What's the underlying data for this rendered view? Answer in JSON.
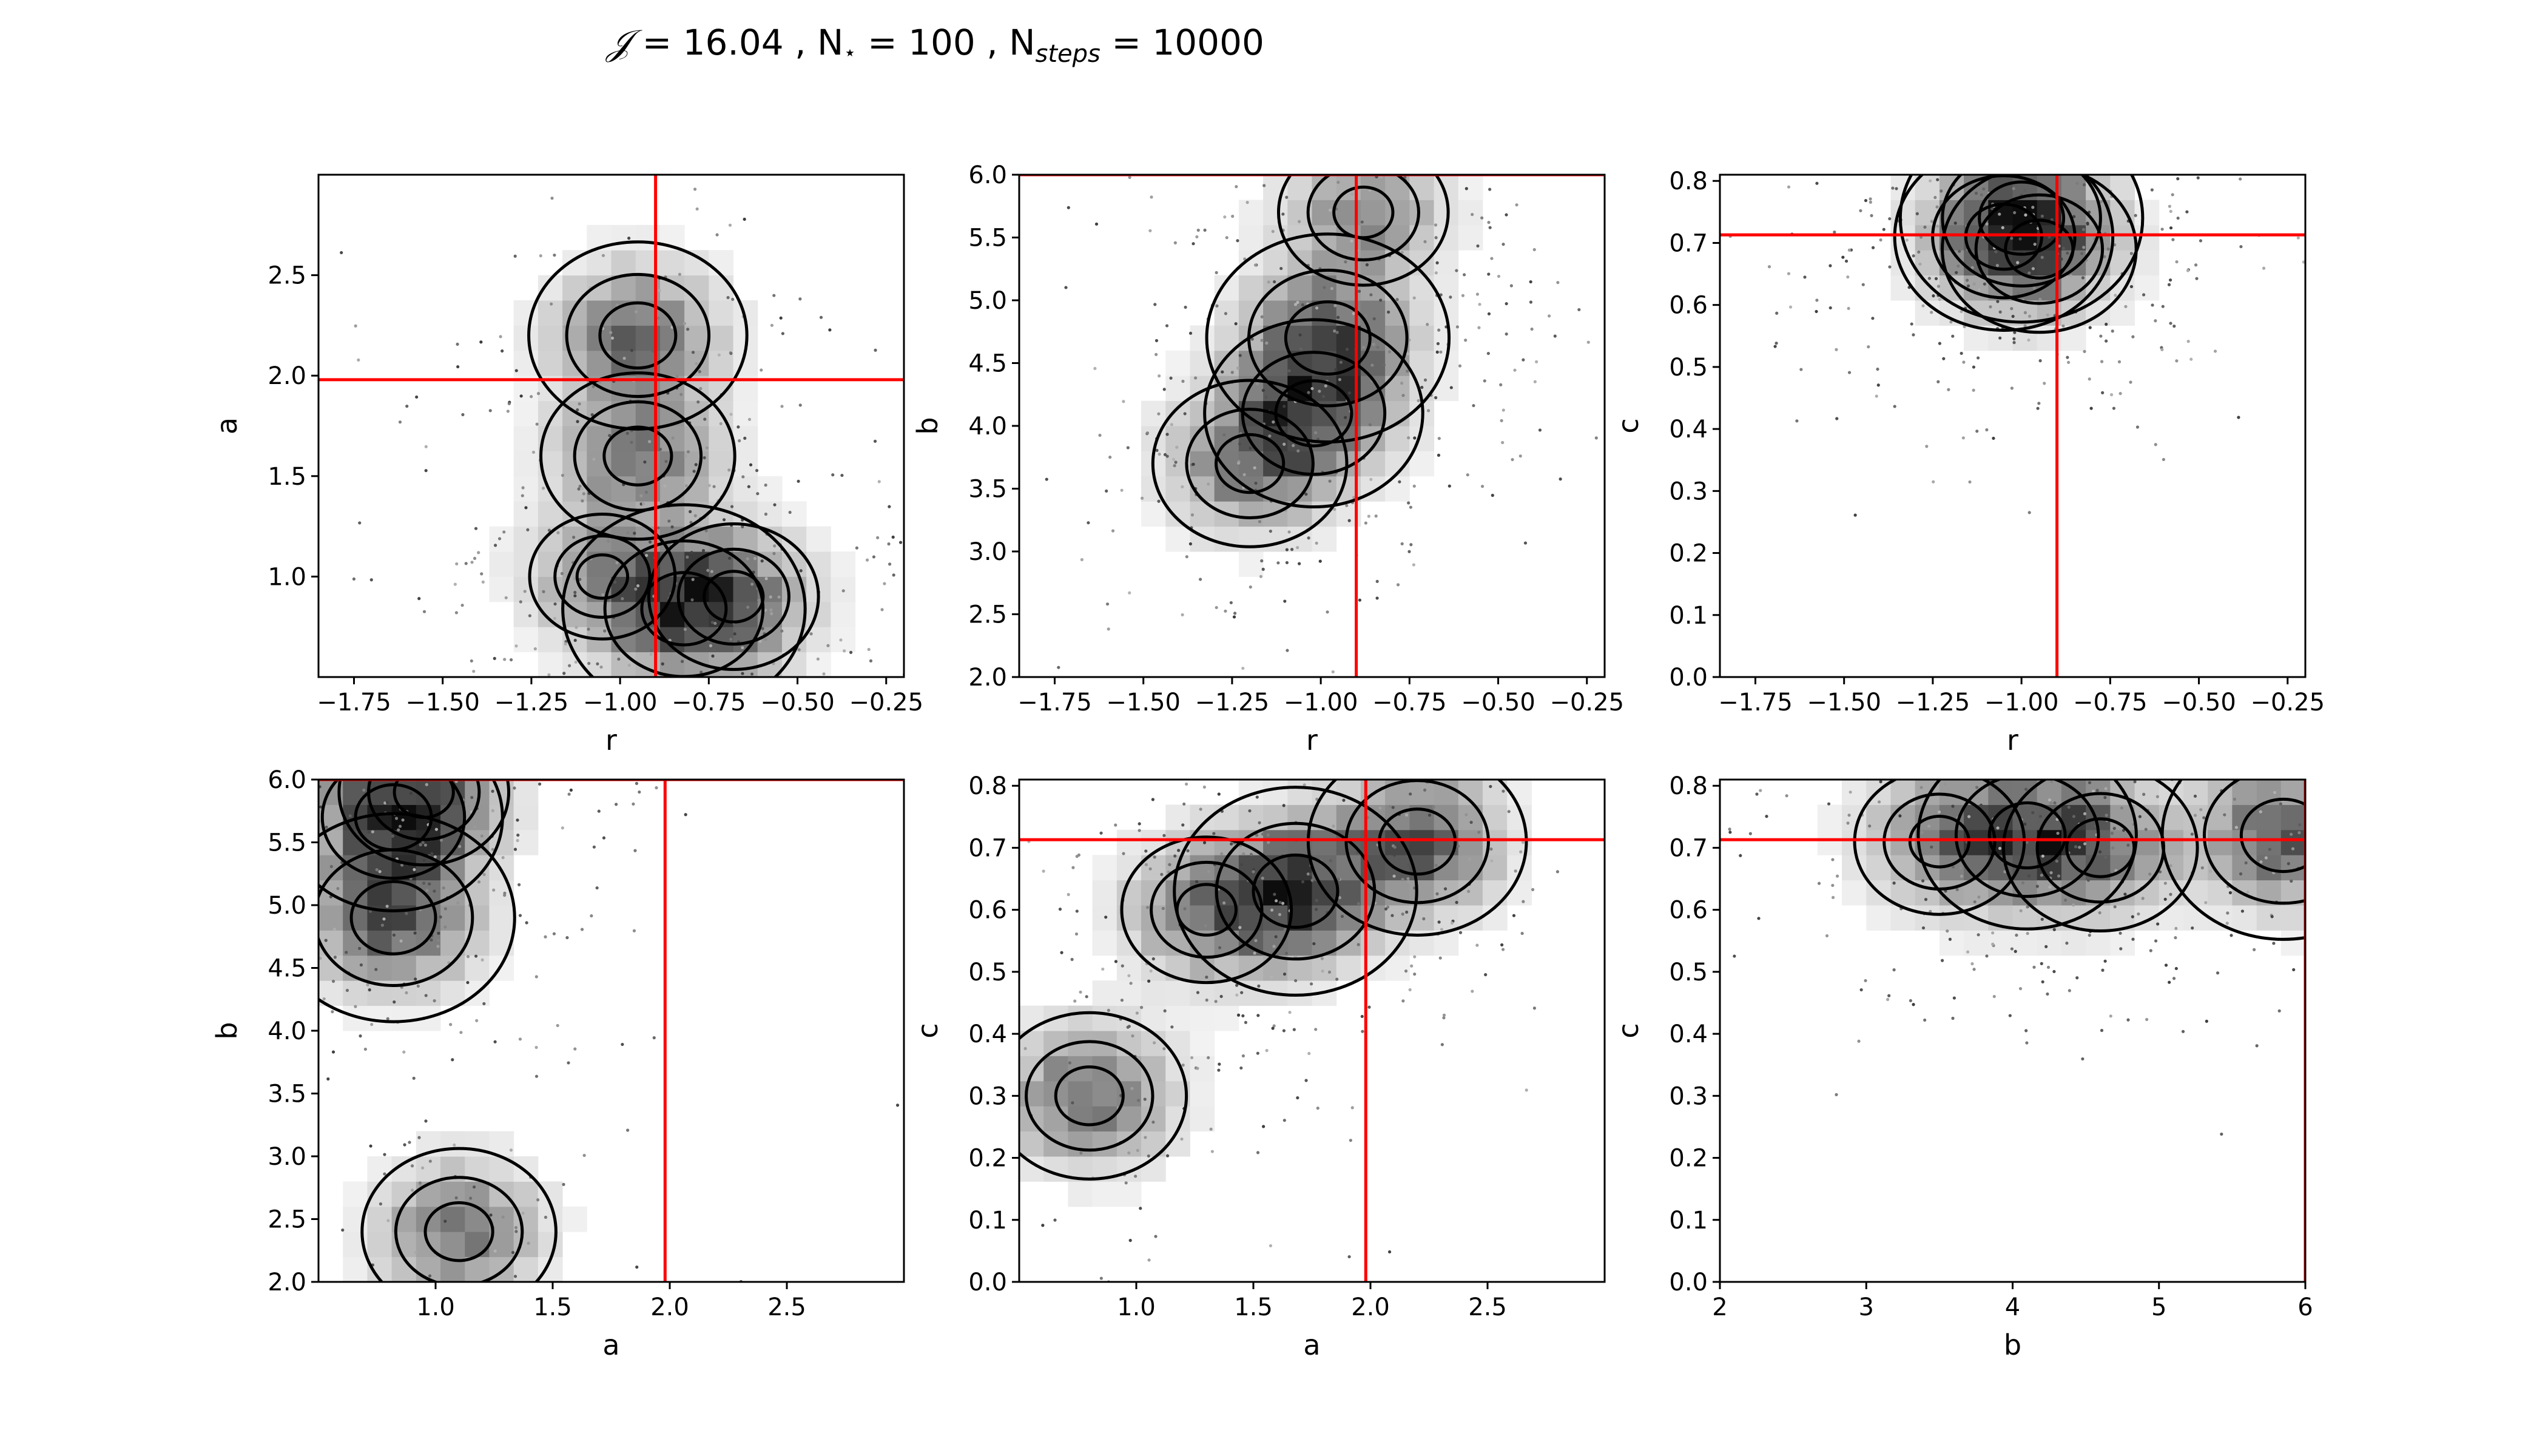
{
  "figure_title": {
    "symbol": "𝒥",
    "part1": " = 16.04 , N",
    "star": "⋆",
    "part2": " = 100 , N",
    "sub": "steps",
    "part3": " = 10000"
  },
  "colors": {
    "truth_line": "#ff0000",
    "contour": "#000000",
    "hist_dark": "#000000",
    "background": "#ffffff"
  },
  "chart_data": [
    {
      "type": "heatmap",
      "xlabel": "r",
      "ylabel": "a",
      "xlim": [
        -1.85,
        -0.2
      ],
      "ylim": [
        0.5,
        3.0
      ],
      "xticks": [
        -1.75,
        -1.5,
        -1.25,
        -1.0,
        -0.75,
        -0.5,
        -0.25
      ],
      "xticklabels": [
        "−1.75",
        "−1.50",
        "−1.25",
        "−1.00",
        "−0.75",
        "−0.50",
        "−0.25"
      ],
      "yticks": [
        1.0,
        1.5,
        2.0,
        2.5
      ],
      "yticklabels": [
        "1.0",
        "1.5",
        "2.0",
        "2.5"
      ],
      "truth": {
        "x": -0.9,
        "y": 1.98
      },
      "density_peaks": [
        [
          -0.82,
          0.84
        ],
        [
          -0.95,
          2.2
        ],
        [
          -0.95,
          1.6
        ],
        [
          -0.68,
          0.9
        ],
        [
          -1.05,
          1.0
        ]
      ],
      "contour_levels": [
        "inner",
        "middle",
        "outer"
      ]
    },
    {
      "type": "heatmap",
      "xlabel": "r",
      "ylabel": "b",
      "xlim": [
        -1.85,
        -0.2
      ],
      "ylim": [
        2.0,
        6.0
      ],
      "xticks": [
        -1.75,
        -1.5,
        -1.25,
        -1.0,
        -0.75,
        -0.5,
        -0.25
      ],
      "xticklabels": [
        "−1.75",
        "−1.50",
        "−1.25",
        "−1.00",
        "−0.75",
        "−0.50",
        "−0.25"
      ],
      "yticks": [
        2.0,
        2.5,
        3.0,
        3.5,
        4.0,
        4.5,
        5.0,
        5.5,
        6.0
      ],
      "yticklabels": [
        "2.0",
        "2.5",
        "3.0",
        "3.5",
        "4.0",
        "4.5",
        "5.0",
        "5.5",
        "6.0"
      ],
      "truth": {
        "x": -0.9,
        "y": 6.0
      },
      "density_peaks": [
        [
          -0.98,
          4.7
        ],
        [
          -1.02,
          4.1
        ],
        [
          -1.2,
          3.7
        ],
        [
          -0.88,
          5.7
        ]
      ],
      "contour_levels": [
        "inner",
        "middle",
        "outer"
      ]
    },
    {
      "type": "heatmap",
      "xlabel": "r",
      "ylabel": "c",
      "xlim": [
        -1.85,
        -0.2
      ],
      "ylim": [
        0.0,
        0.81
      ],
      "xticks": [
        -1.75,
        -1.5,
        -1.25,
        -1.0,
        -0.75,
        -0.5,
        -0.25
      ],
      "xticklabels": [
        "−1.75",
        "−1.50",
        "−1.25",
        "−1.00",
        "−0.75",
        "−0.50",
        "−0.25"
      ],
      "yticks": [
        0.0,
        0.1,
        0.2,
        0.3,
        0.4,
        0.5,
        0.6,
        0.7,
        0.8
      ],
      "yticklabels": [
        "0.0",
        "0.1",
        "0.2",
        "0.3",
        "0.4",
        "0.5",
        "0.6",
        "0.7",
        "0.8"
      ],
      "truth": {
        "x": -0.9,
        "y": 0.713
      },
      "density_peaks": [
        [
          -1.0,
          0.74
        ],
        [
          -1.05,
          0.71
        ],
        [
          -0.95,
          0.69
        ]
      ],
      "contour_levels": [
        "inner",
        "middle",
        "outer"
      ]
    },
    {
      "type": "heatmap",
      "xlabel": "a",
      "ylabel": "b",
      "xlim": [
        0.5,
        3.0
      ],
      "ylim": [
        2.0,
        6.0
      ],
      "xticks": [
        1.0,
        1.5,
        2.0,
        2.5
      ],
      "xticklabels": [
        "1.0",
        "1.5",
        "2.0",
        "2.5"
      ],
      "yticks": [
        2.0,
        2.5,
        3.0,
        3.5,
        4.0,
        4.5,
        5.0,
        5.5,
        6.0
      ],
      "yticklabels": [
        "2.0",
        "2.5",
        "3.0",
        "3.5",
        "4.0",
        "4.5",
        "5.0",
        "5.5",
        "6.0"
      ],
      "truth": {
        "x": 1.98,
        "y": 6.0
      },
      "density_peaks": [
        [
          0.82,
          4.9
        ],
        [
          0.82,
          5.7
        ],
        [
          1.1,
          2.4
        ],
        [
          0.95,
          5.9
        ]
      ],
      "contour_levels": [
        "inner",
        "middle",
        "outer"
      ]
    },
    {
      "type": "heatmap",
      "xlabel": "a",
      "ylabel": "c",
      "xlim": [
        0.5,
        3.0
      ],
      "ylim": [
        0.0,
        0.81
      ],
      "xticks": [
        1.0,
        1.5,
        2.0,
        2.5
      ],
      "xticklabels": [
        "1.0",
        "1.5",
        "2.0",
        "2.5"
      ],
      "yticks": [
        0.0,
        0.1,
        0.2,
        0.3,
        0.4,
        0.5,
        0.6,
        0.7,
        0.8
      ],
      "yticklabels": [
        "0.0",
        "0.1",
        "0.2",
        "0.3",
        "0.4",
        "0.5",
        "0.6",
        "0.7",
        "0.8"
      ],
      "truth": {
        "x": 1.98,
        "y": 0.713
      },
      "density_peaks": [
        [
          1.68,
          0.63
        ],
        [
          2.2,
          0.71
        ],
        [
          0.8,
          0.3
        ],
        [
          1.3,
          0.6
        ]
      ],
      "contour_levels": [
        "inner",
        "middle",
        "outer"
      ]
    },
    {
      "type": "heatmap",
      "xlabel": "b",
      "ylabel": "c",
      "xlim": [
        2.0,
        6.0
      ],
      "ylim": [
        0.0,
        0.81
      ],
      "xticks": [
        2,
        3,
        4,
        5,
        6
      ],
      "xticklabels": [
        "2",
        "3",
        "4",
        "5",
        "6"
      ],
      "yticks": [
        0.0,
        0.1,
        0.2,
        0.3,
        0.4,
        0.5,
        0.6,
        0.7,
        0.8
      ],
      "yticklabels": [
        "0.0",
        "0.1",
        "0.2",
        "0.3",
        "0.4",
        "0.5",
        "0.6",
        "0.7",
        "0.8"
      ],
      "truth": {
        "x": 6.0,
        "y": 0.713
      },
      "density_peaks": [
        [
          5.85,
          0.72
        ],
        [
          4.1,
          0.72
        ],
        [
          4.6,
          0.7
        ],
        [
          3.5,
          0.71
        ]
      ],
      "contour_levels": [
        "inner",
        "middle",
        "outer"
      ]
    }
  ]
}
